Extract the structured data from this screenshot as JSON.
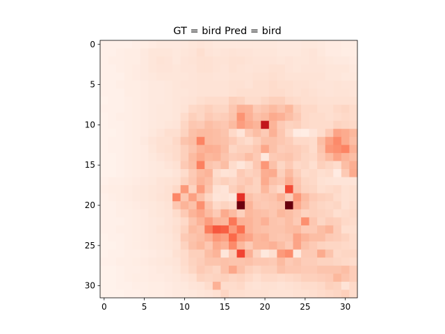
{
  "chart_data": {
    "type": "heatmap",
    "title": "GT = bird Pred = bird",
    "xlabel": "",
    "ylabel": "",
    "rows": 32,
    "cols": 32,
    "xlim": [
      -0.5,
      31.5
    ],
    "ylim": [
      31.5,
      -0.5
    ],
    "x_ticks": [
      0,
      5,
      10,
      15,
      20,
      25,
      30
    ],
    "x_tick_labels": [
      "0",
      "5",
      "10",
      "15",
      "20",
      "25",
      "30"
    ],
    "y_ticks": [
      0,
      5,
      10,
      15,
      20,
      25,
      30
    ],
    "y_tick_labels": [
      "0",
      "5",
      "10",
      "15",
      "20",
      "25",
      "30"
    ],
    "colormap": "Reds",
    "value_range": [
      0,
      1
    ],
    "grid": false,
    "legend": "none",
    "colors": {
      "low": "#ffffff",
      "mid": "#f03b20",
      "high": "#67000d"
    },
    "values": [
      [
        0.03,
        0.03,
        0.03,
        0.03,
        0.04,
        0.05,
        0.06,
        0.07,
        0.07,
        0.07,
        0.08,
        0.09,
        0.1,
        0.09,
        0.08,
        0.08,
        0.08,
        0.08,
        0.08,
        0.08,
        0.08,
        0.08,
        0.07,
        0.07,
        0.07,
        0.08,
        0.08,
        0.07,
        0.06,
        0.06,
        0.05,
        0.05
      ],
      [
        0.03,
        0.03,
        0.04,
        0.05,
        0.05,
        0.07,
        0.09,
        0.09,
        0.09,
        0.08,
        0.09,
        0.1,
        0.13,
        0.1,
        0.09,
        0.1,
        0.11,
        0.1,
        0.1,
        0.09,
        0.09,
        0.09,
        0.08,
        0.08,
        0.08,
        0.09,
        0.1,
        0.08,
        0.06,
        0.06,
        0.05,
        0.05
      ],
      [
        0.03,
        0.04,
        0.04,
        0.05,
        0.05,
        0.07,
        0.09,
        0.11,
        0.1,
        0.08,
        0.1,
        0.11,
        0.12,
        0.12,
        0.11,
        0.11,
        0.12,
        0.12,
        0.11,
        0.1,
        0.1,
        0.1,
        0.09,
        0.1,
        0.09,
        0.09,
        0.1,
        0.09,
        0.08,
        0.07,
        0.07,
        0.06
      ],
      [
        0.03,
        0.03,
        0.04,
        0.05,
        0.06,
        0.07,
        0.09,
        0.1,
        0.1,
        0.09,
        0.1,
        0.1,
        0.12,
        0.12,
        0.11,
        0.1,
        0.12,
        0.11,
        0.1,
        0.11,
        0.11,
        0.12,
        0.12,
        0.1,
        0.09,
        0.1,
        0.1,
        0.1,
        0.09,
        0.09,
        0.09,
        0.07
      ],
      [
        0.03,
        0.03,
        0.03,
        0.05,
        0.06,
        0.07,
        0.08,
        0.09,
        0.09,
        0.09,
        0.09,
        0.1,
        0.11,
        0.11,
        0.1,
        0.1,
        0.11,
        0.11,
        0.11,
        0.12,
        0.12,
        0.13,
        0.12,
        0.11,
        0.11,
        0.11,
        0.11,
        0.11,
        0.09,
        0.09,
        0.08,
        0.08
      ],
      [
        0.03,
        0.03,
        0.04,
        0.05,
        0.05,
        0.06,
        0.07,
        0.07,
        0.08,
        0.09,
        0.1,
        0.1,
        0.11,
        0.11,
        0.11,
        0.11,
        0.12,
        0.12,
        0.11,
        0.13,
        0.13,
        0.14,
        0.13,
        0.13,
        0.12,
        0.12,
        0.11,
        0.1,
        0.1,
        0.11,
        0.1,
        0.1
      ],
      [
        0.03,
        0.03,
        0.03,
        0.05,
        0.05,
        0.06,
        0.07,
        0.07,
        0.08,
        0.09,
        0.09,
        0.1,
        0.11,
        0.11,
        0.11,
        0.11,
        0.12,
        0.13,
        0.13,
        0.13,
        0.13,
        0.14,
        0.14,
        0.13,
        0.12,
        0.13,
        0.12,
        0.11,
        0.1,
        0.11,
        0.11,
        0.1
      ],
      [
        0.02,
        0.03,
        0.03,
        0.04,
        0.05,
        0.06,
        0.07,
        0.07,
        0.08,
        0.09,
        0.1,
        0.11,
        0.13,
        0.14,
        0.14,
        0.14,
        0.18,
        0.17,
        0.14,
        0.14,
        0.16,
        0.18,
        0.18,
        0.15,
        0.14,
        0.13,
        0.13,
        0.12,
        0.12,
        0.12,
        0.12,
        0.12
      ],
      [
        0.03,
        0.03,
        0.03,
        0.04,
        0.05,
        0.06,
        0.07,
        0.08,
        0.08,
        0.09,
        0.11,
        0.15,
        0.16,
        0.18,
        0.16,
        0.16,
        0.21,
        0.28,
        0.27,
        0.2,
        0.22,
        0.25,
        0.22,
        0.26,
        0.18,
        0.15,
        0.15,
        0.13,
        0.13,
        0.15,
        0.16,
        0.14
      ],
      [
        0.02,
        0.03,
        0.04,
        0.04,
        0.05,
        0.06,
        0.07,
        0.08,
        0.08,
        0.09,
        0.14,
        0.18,
        0.16,
        0.2,
        0.18,
        0.19,
        0.22,
        0.37,
        0.28,
        0.23,
        0.25,
        0.3,
        0.28,
        0.24,
        0.2,
        0.15,
        0.14,
        0.14,
        0.13,
        0.14,
        0.15,
        0.14
      ],
      [
        0.02,
        0.03,
        0.03,
        0.04,
        0.05,
        0.06,
        0.07,
        0.08,
        0.09,
        0.1,
        0.16,
        0.21,
        0.2,
        0.24,
        0.22,
        0.21,
        0.25,
        0.34,
        0.3,
        0.27,
        0.78,
        0.27,
        0.2,
        0.17,
        0.18,
        0.15,
        0.14,
        0.14,
        0.14,
        0.17,
        0.16,
        0.15
      ],
      [
        0.02,
        0.02,
        0.03,
        0.04,
        0.05,
        0.06,
        0.08,
        0.1,
        0.13,
        0.13,
        0.17,
        0.23,
        0.25,
        0.25,
        0.24,
        0.22,
        0.15,
        0.1,
        0.2,
        0.24,
        0.2,
        0.28,
        0.21,
        0.15,
        0.06,
        0.05,
        0.1,
        0.14,
        0.2,
        0.32,
        0.3,
        0.26
      ],
      [
        0.02,
        0.03,
        0.03,
        0.04,
        0.05,
        0.07,
        0.1,
        0.12,
        0.12,
        0.15,
        0.22,
        0.24,
        0.42,
        0.25,
        0.24,
        0.23,
        0.2,
        0.16,
        0.14,
        0.18,
        0.23,
        0.23,
        0.21,
        0.19,
        0.15,
        0.15,
        0.14,
        0.24,
        0.33,
        0.4,
        0.3,
        0.24
      ],
      [
        0.02,
        0.03,
        0.03,
        0.04,
        0.05,
        0.06,
        0.09,
        0.12,
        0.13,
        0.14,
        0.18,
        0.22,
        0.27,
        0.29,
        0.28,
        0.24,
        0.16,
        0.18,
        0.18,
        0.21,
        0.31,
        0.23,
        0.19,
        0.2,
        0.19,
        0.17,
        0.14,
        0.22,
        0.36,
        0.38,
        0.42,
        0.28
      ],
      [
        0.02,
        0.02,
        0.03,
        0.04,
        0.05,
        0.06,
        0.08,
        0.1,
        0.12,
        0.14,
        0.18,
        0.25,
        0.3,
        0.26,
        0.27,
        0.22,
        0.19,
        0.2,
        0.24,
        0.2,
        0.08,
        0.2,
        0.21,
        0.22,
        0.19,
        0.16,
        0.15,
        0.2,
        0.25,
        0.32,
        0.27,
        0.24
      ],
      [
        0.02,
        0.02,
        0.03,
        0.04,
        0.05,
        0.06,
        0.07,
        0.08,
        0.1,
        0.12,
        0.2,
        0.24,
        0.43,
        0.22,
        0.2,
        0.24,
        0.14,
        0.09,
        0.14,
        0.21,
        0.36,
        0.23,
        0.16,
        0.2,
        0.15,
        0.16,
        0.13,
        0.18,
        0.16,
        0.14,
        0.24,
        0.29
      ],
      [
        0.02,
        0.02,
        0.03,
        0.04,
        0.05,
        0.06,
        0.07,
        0.08,
        0.08,
        0.1,
        0.14,
        0.2,
        0.25,
        0.27,
        0.14,
        0.11,
        0.12,
        0.2,
        0.17,
        0.19,
        0.29,
        0.3,
        0.18,
        0.25,
        0.18,
        0.14,
        0.15,
        0.13,
        0.14,
        0.06,
        0.2,
        0.3
      ],
      [
        0.03,
        0.04,
        0.04,
        0.05,
        0.06,
        0.07,
        0.08,
        0.1,
        0.11,
        0.12,
        0.17,
        0.21,
        0.27,
        0.24,
        0.16,
        0.18,
        0.16,
        0.19,
        0.21,
        0.17,
        0.3,
        0.23,
        0.21,
        0.29,
        0.21,
        0.16,
        0.15,
        0.12,
        0.11,
        0.1,
        0.1,
        0.1
      ],
      [
        0.04,
        0.05,
        0.05,
        0.06,
        0.07,
        0.08,
        0.09,
        0.1,
        0.12,
        0.15,
        0.35,
        0.17,
        0.34,
        0.22,
        0.12,
        0.1,
        0.18,
        0.22,
        0.18,
        0.17,
        0.26,
        0.19,
        0.15,
        0.58,
        0.22,
        0.17,
        0.16,
        0.13,
        0.14,
        0.15,
        0.12,
        0.13
      ],
      [
        0.03,
        0.04,
        0.05,
        0.06,
        0.07,
        0.08,
        0.09,
        0.11,
        0.12,
        0.41,
        0.21,
        0.33,
        0.23,
        0.16,
        0.1,
        0.11,
        0.08,
        0.66,
        0.23,
        0.2,
        0.21,
        0.22,
        0.27,
        0.19,
        0.35,
        0.25,
        0.2,
        0.18,
        0.17,
        0.14,
        0.12,
        0.13
      ],
      [
        0.03,
        0.03,
        0.04,
        0.05,
        0.06,
        0.07,
        0.08,
        0.09,
        0.11,
        0.21,
        0.27,
        0.23,
        0.38,
        0.22,
        0.15,
        0.17,
        0.15,
        0.99,
        0.27,
        0.21,
        0.2,
        0.21,
        0.22,
        1.0,
        0.3,
        0.23,
        0.18,
        0.16,
        0.15,
        0.16,
        0.12,
        0.14
      ],
      [
        0.03,
        0.03,
        0.04,
        0.04,
        0.05,
        0.06,
        0.08,
        0.09,
        0.1,
        0.14,
        0.2,
        0.27,
        0.31,
        0.25,
        0.2,
        0.3,
        0.25,
        0.18,
        0.26,
        0.24,
        0.23,
        0.21,
        0.26,
        0.24,
        0.21,
        0.17,
        0.18,
        0.17,
        0.16,
        0.13,
        0.14,
        0.15
      ],
      [
        0.03,
        0.03,
        0.03,
        0.04,
        0.05,
        0.06,
        0.07,
        0.08,
        0.1,
        0.12,
        0.15,
        0.22,
        0.27,
        0.34,
        0.27,
        0.26,
        0.46,
        0.28,
        0.27,
        0.24,
        0.28,
        0.22,
        0.21,
        0.24,
        0.2,
        0.38,
        0.21,
        0.16,
        0.19,
        0.18,
        0.15,
        0.14
      ],
      [
        0.03,
        0.03,
        0.04,
        0.04,
        0.05,
        0.06,
        0.07,
        0.09,
        0.1,
        0.13,
        0.17,
        0.25,
        0.23,
        0.44,
        0.55,
        0.53,
        0.35,
        0.48,
        0.27,
        0.24,
        0.23,
        0.22,
        0.22,
        0.24,
        0.25,
        0.2,
        0.2,
        0.24,
        0.27,
        0.19,
        0.13,
        0.13
      ],
      [
        0.02,
        0.03,
        0.03,
        0.04,
        0.05,
        0.06,
        0.07,
        0.08,
        0.09,
        0.12,
        0.2,
        0.22,
        0.24,
        0.28,
        0.36,
        0.33,
        0.5,
        0.35,
        0.32,
        0.26,
        0.27,
        0.22,
        0.21,
        0.22,
        0.32,
        0.27,
        0.24,
        0.24,
        0.2,
        0.19,
        0.17,
        0.14
      ],
      [
        0.02,
        0.02,
        0.03,
        0.04,
        0.05,
        0.06,
        0.07,
        0.08,
        0.09,
        0.11,
        0.17,
        0.23,
        0.26,
        0.21,
        0.3,
        0.27,
        0.4,
        0.26,
        0.2,
        0.26,
        0.26,
        0.28,
        0.24,
        0.2,
        0.32,
        0.23,
        0.2,
        0.17,
        0.16,
        0.16,
        0.15,
        0.14
      ],
      [
        0.02,
        0.03,
        0.03,
        0.04,
        0.04,
        0.05,
        0.06,
        0.07,
        0.08,
        0.12,
        0.14,
        0.18,
        0.18,
        0.24,
        0.27,
        0.09,
        0.2,
        0.6,
        0.28,
        0.17,
        0.08,
        0.13,
        0.35,
        0.39,
        0.07,
        0.2,
        0.2,
        0.3,
        0.22,
        0.15,
        0.16,
        0.16
      ],
      [
        0.03,
        0.03,
        0.04,
        0.04,
        0.05,
        0.06,
        0.07,
        0.08,
        0.09,
        0.1,
        0.14,
        0.17,
        0.19,
        0.22,
        0.22,
        0.23,
        0.22,
        0.22,
        0.23,
        0.21,
        0.21,
        0.2,
        0.25,
        0.2,
        0.22,
        0.19,
        0.19,
        0.17,
        0.17,
        0.16,
        0.15,
        0.14
      ],
      [
        0.02,
        0.02,
        0.03,
        0.04,
        0.04,
        0.05,
        0.06,
        0.07,
        0.07,
        0.09,
        0.13,
        0.16,
        0.2,
        0.18,
        0.16,
        0.23,
        0.31,
        0.23,
        0.18,
        0.16,
        0.18,
        0.18,
        0.23,
        0.21,
        0.21,
        0.2,
        0.2,
        0.22,
        0.22,
        0.22,
        0.24,
        0.19
      ],
      [
        0.02,
        0.02,
        0.03,
        0.04,
        0.05,
        0.05,
        0.06,
        0.06,
        0.07,
        0.08,
        0.1,
        0.12,
        0.17,
        0.16,
        0.17,
        0.18,
        0.16,
        0.17,
        0.15,
        0.13,
        0.15,
        0.15,
        0.14,
        0.15,
        0.16,
        0.18,
        0.18,
        0.19,
        0.2,
        0.26,
        0.22,
        0.19
      ],
      [
        0.02,
        0.02,
        0.03,
        0.03,
        0.04,
        0.04,
        0.05,
        0.05,
        0.06,
        0.07,
        0.08,
        0.1,
        0.11,
        0.14,
        0.28,
        0.14,
        0.14,
        0.15,
        0.12,
        0.11,
        0.12,
        0.12,
        0.11,
        0.12,
        0.13,
        0.14,
        0.14,
        0.15,
        0.18,
        0.17,
        0.11,
        0.15
      ],
      [
        0.02,
        0.02,
        0.02,
        0.03,
        0.03,
        0.04,
        0.05,
        0.05,
        0.06,
        0.07,
        0.07,
        0.08,
        0.09,
        0.1,
        0.12,
        0.16,
        0.13,
        0.13,
        0.12,
        0.12,
        0.12,
        0.11,
        0.11,
        0.11,
        0.12,
        0.12,
        0.13,
        0.14,
        0.15,
        0.16,
        0.18,
        0.14
      ]
    ]
  }
}
